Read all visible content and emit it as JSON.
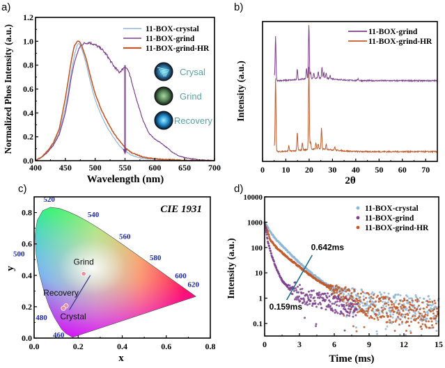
{
  "figure": {
    "panels": [
      "a)",
      "b)",
      "c)",
      "d)"
    ]
  },
  "colors": {
    "crystal": "#8fb6d6",
    "grind": "#7b3f8c",
    "grind_hr": "#c0582a",
    "inset_text": "#5aa3a3",
    "cie_wavelength": "#1a2aa8",
    "annotation_line": "#1f6e8c"
  },
  "chart_data": [
    {
      "id": "a",
      "type": "line",
      "title": "",
      "xlabel": "Wavelength (nm)",
      "ylabel": "Normalized Phos Intensity (a.u.)",
      "xlim": [
        400,
        700
      ],
      "ylim": [
        0,
        1.2
      ],
      "xticks": [
        "400",
        "450",
        "500",
        "550",
        "600",
        "650",
        "700"
      ],
      "yticks": [
        "0.0",
        "0.2",
        "0.4",
        "0.6",
        "0.8",
        "1.0",
        "1.2"
      ],
      "legend": {
        "position": "top-right",
        "entries": [
          "11-BOX-crystal",
          "11-BOX-grind",
          "11-BOX-grind-HR"
        ]
      },
      "series": [
        {
          "name": "11-BOX-crystal",
          "color": "#8fb6d6",
          "x": [
            400,
            410,
            420,
            430,
            440,
            450,
            455,
            460,
            465,
            470,
            473,
            476,
            480,
            485,
            490,
            495,
            500,
            510,
            520,
            530,
            540,
            550,
            560,
            570,
            580,
            600,
            620,
            650,
            700
          ],
          "y": [
            0.0,
            0.03,
            0.08,
            0.14,
            0.24,
            0.44,
            0.58,
            0.74,
            0.88,
            0.97,
            0.98,
            0.96,
            0.9,
            0.81,
            0.7,
            0.6,
            0.51,
            0.38,
            0.28,
            0.2,
            0.13,
            0.08,
            0.05,
            0.03,
            0.02,
            0.01,
            0.005,
            0.0,
            0.0
          ]
        },
        {
          "name": "11-BOX-grind",
          "color": "#7b3f8c",
          "x": [
            400,
            410,
            420,
            430,
            440,
            450,
            455,
            460,
            465,
            470,
            475,
            480,
            490,
            500,
            510,
            520,
            530,
            540,
            545,
            550,
            555,
            560,
            570,
            580,
            590,
            600,
            610,
            620,
            630,
            640,
            650,
            670,
            700
          ],
          "y": [
            0.0,
            0.03,
            0.07,
            0.13,
            0.22,
            0.4,
            0.54,
            0.7,
            0.82,
            0.9,
            0.96,
            0.98,
            0.99,
            0.97,
            0.94,
            0.88,
            0.8,
            0.74,
            0.76,
            0.79,
            0.76,
            0.68,
            0.5,
            0.34,
            0.23,
            0.18,
            0.15,
            0.11,
            0.07,
            0.04,
            0.025,
            0.01,
            0.0
          ]
        },
        {
          "name": "11-BOX-grind-HR",
          "color": "#c0582a",
          "x": [
            400,
            410,
            420,
            430,
            440,
            450,
            455,
            460,
            465,
            470,
            473,
            476,
            480,
            485,
            490,
            495,
            500,
            510,
            520,
            530,
            540,
            550,
            560,
            570,
            580,
            600,
            620,
            650,
            700
          ],
          "y": [
            0.0,
            0.03,
            0.08,
            0.15,
            0.27,
            0.52,
            0.68,
            0.84,
            0.96,
            1.0,
            1.0,
            0.98,
            0.93,
            0.85,
            0.75,
            0.65,
            0.56,
            0.43,
            0.33,
            0.24,
            0.17,
            0.11,
            0.07,
            0.05,
            0.03,
            0.015,
            0.01,
            0.003,
            0.0
          ]
        }
      ],
      "annotations": [
        {
          "type": "arrow-down",
          "x": 550,
          "from": 0.8,
          "to": 0.05,
          "color": "#7b3f8c"
        }
      ],
      "insets": [
        {
          "label": "Crysal",
          "icon": "crystal-photo"
        },
        {
          "label": "Grind",
          "icon": "grind-photo"
        },
        {
          "label": "Recovery",
          "icon": "recovery-photo"
        }
      ]
    },
    {
      "id": "b",
      "type": "line",
      "title": "",
      "xlabel": "2θ",
      "ylabel": "Intensity (a.u.)",
      "xlim": [
        0,
        75
      ],
      "xticks": [
        "0",
        "10",
        "20",
        "30",
        "40",
        "50",
        "60",
        "70"
      ],
      "yticks": [],
      "legend": {
        "position": "top-right",
        "entries": [
          "11-BOX-grind",
          "11-BOX-grind-HR"
        ]
      },
      "series": [
        {
          "name": "11-BOX-grind",
          "color": "#7b3f8c",
          "offset": 0.55,
          "peaks": [
            [
              5.6,
              0.42
            ],
            [
              14.9,
              0.1
            ],
            [
              18.9,
              0.1
            ],
            [
              19.9,
              0.52
            ],
            [
              20.6,
              0.06
            ],
            [
              22.0,
              0.05
            ],
            [
              23.9,
              0.06
            ],
            [
              25.5,
              0.1
            ],
            [
              26.3,
              0.06
            ],
            [
              27.3,
              0.05
            ],
            [
              29.0,
              0.03
            ],
            [
              41.0,
              0.02
            ]
          ]
        },
        {
          "name": "11-BOX-grind-HR",
          "color": "#c0582a",
          "offset": 0.0,
          "peaks": [
            [
              5.6,
              0.7
            ],
            [
              11.3,
              0.05
            ],
            [
              14.9,
              0.17
            ],
            [
              17.1,
              0.07
            ],
            [
              19.9,
              0.8
            ],
            [
              20.6,
              0.07
            ],
            [
              22.9,
              0.06
            ],
            [
              23.9,
              0.05
            ],
            [
              25.3,
              0.2
            ],
            [
              27.3,
              0.05
            ],
            [
              31.0,
              0.03
            ]
          ]
        }
      ]
    },
    {
      "id": "c",
      "type": "scatter",
      "title": "CIE 1931",
      "xlabel": "x",
      "ylabel": "y",
      "xlim": [
        0,
        0.8
      ],
      "ylim": [
        0,
        0.9
      ],
      "xticks": [
        "0.0",
        "0.2",
        "0.4",
        "0.6",
        "0.8"
      ],
      "yticks": [
        "0.0",
        "0.2",
        "0.4",
        "0.6",
        "0.8"
      ],
      "wavelength_labels": [
        {
          "label": "460",
          "x": 0.144,
          "y": 0.03
        },
        {
          "label": "480",
          "x": 0.091,
          "y": 0.133
        },
        {
          "label": "500",
          "x": 0.008,
          "y": 0.538
        },
        {
          "label": "520",
          "x": 0.074,
          "y": 0.834
        },
        {
          "label": "540",
          "x": 0.23,
          "y": 0.754
        },
        {
          "label": "560",
          "x": 0.373,
          "y": 0.624
        },
        {
          "label": "580",
          "x": 0.512,
          "y": 0.487
        },
        {
          "label": "600",
          "x": 0.627,
          "y": 0.372
        },
        {
          "label": "620",
          "x": 0.691,
          "y": 0.308
        }
      ],
      "points": [
        {
          "label": "Grind",
          "x": 0.225,
          "y": 0.41
        },
        {
          "label": "Recovery",
          "x": 0.145,
          "y": 0.205
        },
        {
          "label": "Crystal",
          "x": 0.133,
          "y": 0.19
        }
      ],
      "annotation_line": {
        "from": [
          0.16,
          0.18
        ],
        "to": [
          0.255,
          0.4
        ]
      }
    },
    {
      "id": "d",
      "type": "scatter",
      "title": "",
      "xlabel": "Time (ms)",
      "ylabel": "Intensity (a.u.)",
      "xlim": [
        0,
        15
      ],
      "ylim": [
        0.032,
        10000
      ],
      "yscale": "log",
      "xticks": [
        "0",
        "3",
        "6",
        "9",
        "12",
        "15"
      ],
      "yticks": [
        "0.1",
        "1",
        "10",
        "100",
        "1000",
        "10000"
      ],
      "legend": {
        "position": "top-right",
        "entries": [
          "11-BOX-crystal",
          "11-BOX-grind",
          "11-BOX-grind-HR"
        ]
      },
      "series": [
        {
          "name": "11-BOX-crystal",
          "color": "#8fb6d6",
          "lifetime_ms": 0.642,
          "x_end": 15,
          "curve": [
            [
              0,
              1000
            ],
            [
              0.5,
              400
            ],
            [
              1,
              200
            ],
            [
              2,
              70
            ],
            [
              3,
              25
            ],
            [
              4,
              10
            ],
            [
              5,
              4.5
            ],
            [
              6,
              2.2
            ],
            [
              7,
              1.3
            ],
            [
              8,
              0.9
            ],
            [
              9,
              0.7
            ],
            [
              10,
              0.55
            ],
            [
              12,
              0.45
            ],
            [
              15,
              0.38
            ]
          ]
        },
        {
          "name": "11-BOX-grind",
          "color": "#7b3f8c",
          "lifetime_ms": 0.159,
          "x_end": 8,
          "curve": [
            [
              0,
              900
            ],
            [
              0.3,
              150
            ],
            [
              0.6,
              50
            ],
            [
              1,
              15
            ],
            [
              1.5,
              5
            ],
            [
              2,
              2.8
            ],
            [
              3,
              1.5
            ],
            [
              4,
              1.1
            ],
            [
              5,
              0.8
            ],
            [
              6,
              0.6
            ],
            [
              7,
              0.45
            ],
            [
              8,
              0.35
            ]
          ]
        },
        {
          "name": "11-BOX-grind-HR",
          "color": "#c0582a",
          "x_end": 15,
          "curve": [
            [
              0,
              900
            ],
            [
              0.5,
              200
            ],
            [
              1,
              100
            ],
            [
              2,
              40
            ],
            [
              3,
              17
            ],
            [
              4,
              7.5
            ],
            [
              5,
              3.8
            ],
            [
              6,
              2
            ],
            [
              7,
              1.1
            ],
            [
              8,
              0.7
            ],
            [
              9,
              0.5
            ],
            [
              10,
              0.38
            ],
            [
              12,
              0.28
            ],
            [
              15,
              0.22
            ]
          ]
        }
      ],
      "annotations": [
        {
          "text": "0.642ms"
        },
        {
          "text": "0.159ms"
        }
      ]
    }
  ]
}
